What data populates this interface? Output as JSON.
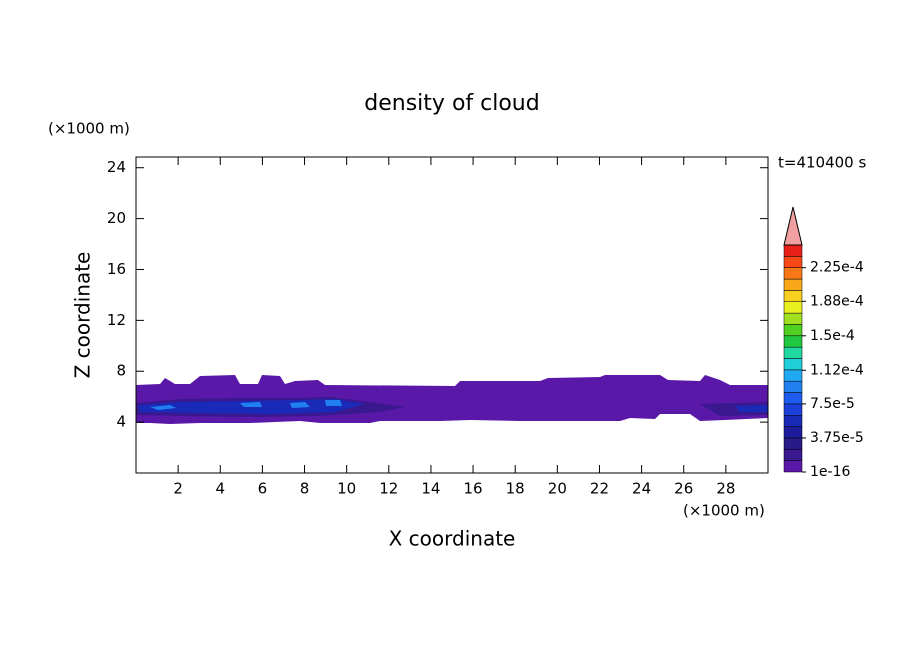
{
  "chart_data": {
    "type": "contour",
    "title": "density of cloud",
    "xlabel": "X coordinate",
    "ylabel": "Z coordinate",
    "xunit": "(×1000 m)",
    "yunit": "(×1000 m)",
    "annotation": "t=410400 s",
    "xlim": [
      0,
      30
    ],
    "xticks": [
      2,
      4,
      6,
      8,
      10,
      12,
      14,
      16,
      18,
      20,
      22,
      24,
      26,
      28
    ],
    "ylim": [
      0,
      25
    ],
    "yticks": [
      4,
      8,
      12,
      16,
      20,
      24
    ],
    "colorbar": {
      "lim": [
        1e-16,
        0.00025
      ],
      "ticks": [
        {
          "value": 1e-16,
          "label": "1e-16"
        },
        {
          "value": 3.75e-05,
          "label": "3.75e-5"
        },
        {
          "value": 7.5e-05,
          "label": "7.5e-5"
        },
        {
          "value": 0.000112,
          "label": "1.12e-4"
        },
        {
          "value": 0.00015,
          "label": "1.5e-4"
        },
        {
          "value": 0.000188,
          "label": "1.88e-4"
        },
        {
          "value": 0.000225,
          "label": "2.25e-4"
        }
      ],
      "colors": [
        "#5a18a8",
        "#3a1890",
        "#281a88",
        "#1c1c9c",
        "#1a2ab8",
        "#1a40d8",
        "#1e5cf0",
        "#2080f0",
        "#20a8f0",
        "#20d0d8",
        "#20d8a0",
        "#20c840",
        "#50d020",
        "#a0e020",
        "#e8f020",
        "#f8d020",
        "#f8a818",
        "#f87818",
        "#f84818",
        "#e82018"
      ],
      "extend_color": "#f0a0a0"
    }
  }
}
